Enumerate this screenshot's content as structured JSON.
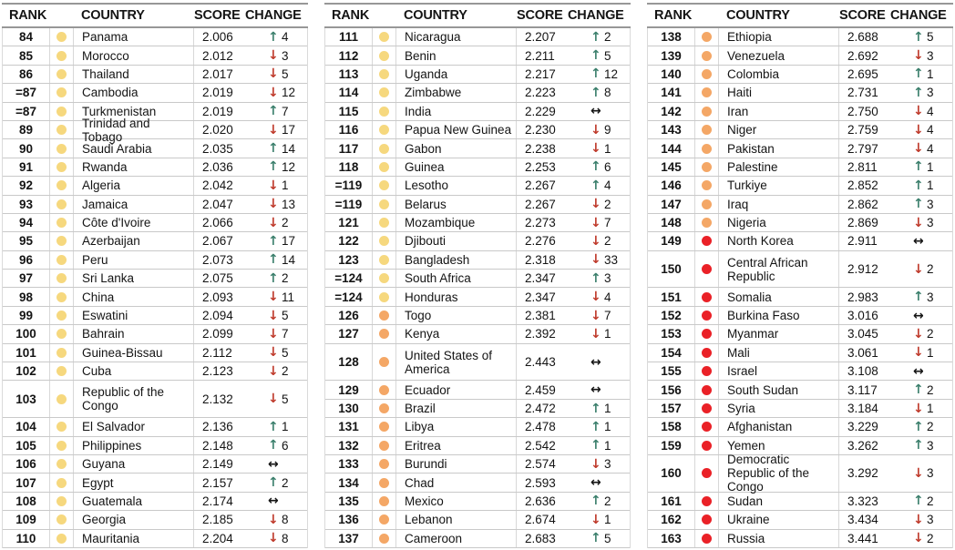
{
  "colors": {
    "tier_yellow": "#F6D87E",
    "tier_orange": "#F4A766",
    "tier_red": "#EA2127",
    "change_up": "#3B7F6C",
    "change_down": "#BF3A2B",
    "change_same": "#141414",
    "text": "#141414",
    "header_line": "#979797",
    "row_line": "#C9C9C9"
  },
  "icons": {
    "up": "↑",
    "down": "↓",
    "same": "↔"
  },
  "chart_data": {
    "type": "table",
    "columns": [
      "RANK",
      "COUNTRY",
      "SCORE",
      "CHANGE"
    ],
    "tier_legend": [
      "yellow",
      "orange",
      "red"
    ],
    "tables": [
      {
        "rows": [
          {
            "rank": "84",
            "tier": "yellow",
            "country": "Panama",
            "score": "2.006",
            "change_dir": "up",
            "change_value": "4"
          },
          {
            "rank": "85",
            "tier": "yellow",
            "country": "Morocco",
            "score": "2.012",
            "change_dir": "down",
            "change_value": "3"
          },
          {
            "rank": "86",
            "tier": "yellow",
            "country": "Thailand",
            "score": "2.017",
            "change_dir": "down",
            "change_value": "5"
          },
          {
            "rank": "=87",
            "tier": "yellow",
            "country": "Cambodia",
            "score": "2.019",
            "change_dir": "down",
            "change_value": "12"
          },
          {
            "rank": "=87",
            "tier": "yellow",
            "country": "Turkmenistan",
            "score": "2.019",
            "change_dir": "up",
            "change_value": "7"
          },
          {
            "rank": "89",
            "tier": "yellow",
            "country": "Trinidad and Tobago",
            "score": "2.020",
            "change_dir": "down",
            "change_value": "17"
          },
          {
            "rank": "90",
            "tier": "yellow",
            "country": "Saudi Arabia",
            "score": "2.035",
            "change_dir": "up",
            "change_value": "14"
          },
          {
            "rank": "91",
            "tier": "yellow",
            "country": "Rwanda",
            "score": "2.036",
            "change_dir": "up",
            "change_value": "12"
          },
          {
            "rank": "92",
            "tier": "yellow",
            "country": "Algeria",
            "score": "2.042",
            "change_dir": "down",
            "change_value": "1"
          },
          {
            "rank": "93",
            "tier": "yellow",
            "country": "Jamaica",
            "score": "2.047",
            "change_dir": "down",
            "change_value": "13"
          },
          {
            "rank": "94",
            "tier": "yellow",
            "country": "Côte d'Ivoire",
            "score": "2.066",
            "change_dir": "down",
            "change_value": "2"
          },
          {
            "rank": "95",
            "tier": "yellow",
            "country": "Azerbaijan",
            "score": "2.067",
            "change_dir": "up",
            "change_value": "17"
          },
          {
            "rank": "96",
            "tier": "yellow",
            "country": "Peru",
            "score": "2.073",
            "change_dir": "up",
            "change_value": "14"
          },
          {
            "rank": "97",
            "tier": "yellow",
            "country": "Sri Lanka",
            "score": "2.075",
            "change_dir": "up",
            "change_value": "2"
          },
          {
            "rank": "98",
            "tier": "yellow",
            "country": "China",
            "score": "2.093",
            "change_dir": "down",
            "change_value": "11"
          },
          {
            "rank": "99",
            "tier": "yellow",
            "country": "Eswatini",
            "score": "2.094",
            "change_dir": "down",
            "change_value": "5"
          },
          {
            "rank": "100",
            "tier": "yellow",
            "country": "Bahrain",
            "score": "2.099",
            "change_dir": "down",
            "change_value": "7"
          },
          {
            "rank": "101",
            "tier": "yellow",
            "country": "Guinea-Bissau",
            "score": "2.112",
            "change_dir": "down",
            "change_value": "5"
          },
          {
            "rank": "102",
            "tier": "yellow",
            "country": "Cuba",
            "score": "2.123",
            "change_dir": "down",
            "change_value": "2"
          },
          {
            "rank": "103",
            "tier": "yellow",
            "country": "Republic of the Congo",
            "score": "2.132",
            "change_dir": "down",
            "change_value": "5"
          },
          {
            "rank": "104",
            "tier": "yellow",
            "country": "El Salvador",
            "score": "2.136",
            "change_dir": "up",
            "change_value": "1"
          },
          {
            "rank": "105",
            "tier": "yellow",
            "country": "Philippines",
            "score": "2.148",
            "change_dir": "up",
            "change_value": "6"
          },
          {
            "rank": "106",
            "tier": "yellow",
            "country": "Guyana",
            "score": "2.149",
            "change_dir": "same",
            "change_value": ""
          },
          {
            "rank": "107",
            "tier": "yellow",
            "country": "Egypt",
            "score": "2.157",
            "change_dir": "up",
            "change_value": "2"
          },
          {
            "rank": "108",
            "tier": "yellow",
            "country": "Guatemala",
            "score": "2.174",
            "change_dir": "same",
            "change_value": ""
          },
          {
            "rank": "109",
            "tier": "yellow",
            "country": "Georgia",
            "score": "2.185",
            "change_dir": "down",
            "change_value": "8"
          },
          {
            "rank": "110",
            "tier": "yellow",
            "country": "Mauritania",
            "score": "2.204",
            "change_dir": "down",
            "change_value": "8"
          }
        ]
      },
      {
        "rows": [
          {
            "rank": "111",
            "tier": "yellow",
            "country": "Nicaragua",
            "score": "2.207",
            "change_dir": "up",
            "change_value": "2"
          },
          {
            "rank": "112",
            "tier": "yellow",
            "country": "Benin",
            "score": "2.211",
            "change_dir": "up",
            "change_value": "5"
          },
          {
            "rank": "113",
            "tier": "yellow",
            "country": "Uganda",
            "score": "2.217",
            "change_dir": "up",
            "change_value": "12"
          },
          {
            "rank": "114",
            "tier": "yellow",
            "country": "Zimbabwe",
            "score": "2.223",
            "change_dir": "up",
            "change_value": "8"
          },
          {
            "rank": "115",
            "tier": "yellow",
            "country": "India",
            "score": "2.229",
            "change_dir": "same",
            "change_value": ""
          },
          {
            "rank": "116",
            "tier": "yellow",
            "country": "Papua New Guinea",
            "score": "2.230",
            "change_dir": "down",
            "change_value": "9"
          },
          {
            "rank": "117",
            "tier": "yellow",
            "country": "Gabon",
            "score": "2.238",
            "change_dir": "down",
            "change_value": "1"
          },
          {
            "rank": "118",
            "tier": "yellow",
            "country": "Guinea",
            "score": "2.253",
            "change_dir": "up",
            "change_value": "6"
          },
          {
            "rank": "=119",
            "tier": "yellow",
            "country": "Lesotho",
            "score": "2.267",
            "change_dir": "up",
            "change_value": "4"
          },
          {
            "rank": "=119",
            "tier": "yellow",
            "country": "Belarus",
            "score": "2.267",
            "change_dir": "down",
            "change_value": "2"
          },
          {
            "rank": "121",
            "tier": "yellow",
            "country": "Mozambique",
            "score": "2.273",
            "change_dir": "down",
            "change_value": "7"
          },
          {
            "rank": "122",
            "tier": "yellow",
            "country": "Djibouti",
            "score": "2.276",
            "change_dir": "down",
            "change_value": "2"
          },
          {
            "rank": "123",
            "tier": "yellow",
            "country": "Bangladesh",
            "score": "2.318",
            "change_dir": "down",
            "change_value": "33"
          },
          {
            "rank": "=124",
            "tier": "yellow",
            "country": "South Africa",
            "score": "2.347",
            "change_dir": "up",
            "change_value": "3"
          },
          {
            "rank": "=124",
            "tier": "yellow",
            "country": "Honduras",
            "score": "2.347",
            "change_dir": "down",
            "change_value": "4"
          },
          {
            "rank": "126",
            "tier": "orange",
            "country": "Togo",
            "score": "2.381",
            "change_dir": "down",
            "change_value": "7"
          },
          {
            "rank": "127",
            "tier": "orange",
            "country": "Kenya",
            "score": "2.392",
            "change_dir": "down",
            "change_value": "1"
          },
          {
            "rank": "128",
            "tier": "orange",
            "country": "United States of America",
            "score": "2.443",
            "change_dir": "same",
            "change_value": ""
          },
          {
            "rank": "129",
            "tier": "orange",
            "country": "Ecuador",
            "score": "2.459",
            "change_dir": "same",
            "change_value": ""
          },
          {
            "rank": "130",
            "tier": "orange",
            "country": "Brazil",
            "score": "2.472",
            "change_dir": "up",
            "change_value": "1"
          },
          {
            "rank": "131",
            "tier": "orange",
            "country": "Libya",
            "score": "2.478",
            "change_dir": "up",
            "change_value": "1"
          },
          {
            "rank": "132",
            "tier": "orange",
            "country": "Eritrea",
            "score": "2.542",
            "change_dir": "up",
            "change_value": "1"
          },
          {
            "rank": "133",
            "tier": "orange",
            "country": "Burundi",
            "score": "2.574",
            "change_dir": "down",
            "change_value": "3"
          },
          {
            "rank": "134",
            "tier": "orange",
            "country": "Chad",
            "score": "2.593",
            "change_dir": "same",
            "change_value": ""
          },
          {
            "rank": "135",
            "tier": "orange",
            "country": "Mexico",
            "score": "2.636",
            "change_dir": "up",
            "change_value": "2"
          },
          {
            "rank": "136",
            "tier": "orange",
            "country": "Lebanon",
            "score": "2.674",
            "change_dir": "down",
            "change_value": "1"
          },
          {
            "rank": "137",
            "tier": "orange",
            "country": "Cameroon",
            "score": "2.683",
            "change_dir": "up",
            "change_value": "5"
          }
        ]
      },
      {
        "rows": [
          {
            "rank": "138",
            "tier": "orange",
            "country": "Ethiopia",
            "score": "2.688",
            "change_dir": "up",
            "change_value": "5"
          },
          {
            "rank": "139",
            "tier": "orange",
            "country": "Venezuela",
            "score": "2.692",
            "change_dir": "down",
            "change_value": "3"
          },
          {
            "rank": "140",
            "tier": "orange",
            "country": "Colombia",
            "score": "2.695",
            "change_dir": "up",
            "change_value": "1"
          },
          {
            "rank": "141",
            "tier": "orange",
            "country": "Haiti",
            "score": "2.731",
            "change_dir": "up",
            "change_value": "3"
          },
          {
            "rank": "142",
            "tier": "orange",
            "country": "Iran",
            "score": "2.750",
            "change_dir": "down",
            "change_value": "4"
          },
          {
            "rank": "143",
            "tier": "orange",
            "country": "Niger",
            "score": "2.759",
            "change_dir": "down",
            "change_value": "4"
          },
          {
            "rank": "144",
            "tier": "orange",
            "country": "Pakistan",
            "score": "2.797",
            "change_dir": "down",
            "change_value": "4"
          },
          {
            "rank": "145",
            "tier": "orange",
            "country": "Palestine",
            "score": "2.811",
            "change_dir": "up",
            "change_value": "1"
          },
          {
            "rank": "146",
            "tier": "orange",
            "country": "Turkiye",
            "score": "2.852",
            "change_dir": "up",
            "change_value": "1"
          },
          {
            "rank": "147",
            "tier": "orange",
            "country": "Iraq",
            "score": "2.862",
            "change_dir": "up",
            "change_value": "3"
          },
          {
            "rank": "148",
            "tier": "orange",
            "country": "Nigeria",
            "score": "2.869",
            "change_dir": "down",
            "change_value": "3"
          },
          {
            "rank": "149",
            "tier": "red",
            "country": "North Korea",
            "score": "2.911",
            "change_dir": "same",
            "change_value": ""
          },
          {
            "rank": "150",
            "tier": "red",
            "country": "Central African Republic",
            "score": "2.912",
            "change_dir": "down",
            "change_value": "2"
          },
          {
            "rank": "151",
            "tier": "red",
            "country": "Somalia",
            "score": "2.983",
            "change_dir": "up",
            "change_value": "3"
          },
          {
            "rank": "152",
            "tier": "red",
            "country": "Burkina Faso",
            "score": "3.016",
            "change_dir": "same",
            "change_value": ""
          },
          {
            "rank": "153",
            "tier": "red",
            "country": "Myanmar",
            "score": "3.045",
            "change_dir": "down",
            "change_value": "2"
          },
          {
            "rank": "154",
            "tier": "red",
            "country": "Mali",
            "score": "3.061",
            "change_dir": "down",
            "change_value": "1"
          },
          {
            "rank": "155",
            "tier": "red",
            "country": "Israel",
            "score": "3.108",
            "change_dir": "same",
            "change_value": ""
          },
          {
            "rank": "156",
            "tier": "red",
            "country": "South Sudan",
            "score": "3.117",
            "change_dir": "up",
            "change_value": "2"
          },
          {
            "rank": "157",
            "tier": "red",
            "country": "Syria",
            "score": "3.184",
            "change_dir": "down",
            "change_value": "1"
          },
          {
            "rank": "158",
            "tier": "red",
            "country": "Afghanistan",
            "score": "3.229",
            "change_dir": "up",
            "change_value": "2"
          },
          {
            "rank": "159",
            "tier": "red",
            "country": "Yemen",
            "score": "3.262",
            "change_dir": "up",
            "change_value": "3"
          },
          {
            "rank": "160",
            "tier": "red",
            "country": "Democratic Republic of the Congo",
            "score": "3.292",
            "change_dir": "down",
            "change_value": "3"
          },
          {
            "rank": "161",
            "tier": "red",
            "country": "Sudan",
            "score": "3.323",
            "change_dir": "up",
            "change_value": "2"
          },
          {
            "rank": "162",
            "tier": "red",
            "country": "Ukraine",
            "score": "3.434",
            "change_dir": "down",
            "change_value": "3"
          },
          {
            "rank": "163",
            "tier": "red",
            "country": "Russia",
            "score": "3.441",
            "change_dir": "down",
            "change_value": "2"
          }
        ]
      }
    ]
  }
}
